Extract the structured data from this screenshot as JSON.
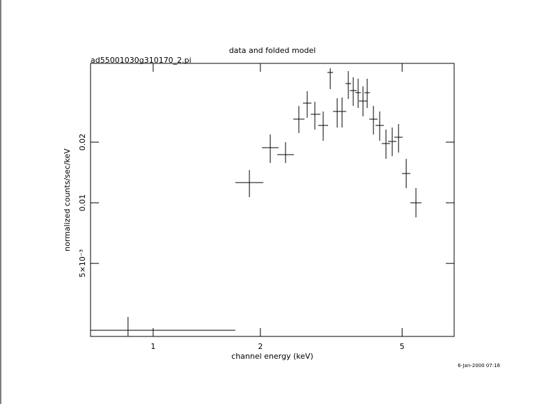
{
  "chart_data": {
    "type": "errorbar",
    "title": "data and folded model",
    "subtitle": "ad55001030g310170_2.pi",
    "xlabel": "channel energy (keV)",
    "ylabel": "normalized counts/sec/keV",
    "timestamp": "6-Jan-2000 07:16",
    "xscale": "log",
    "yscale": "log",
    "xlim": [
      0.667,
      7.0
    ],
    "ylim": [
      0.00217,
      0.0492
    ],
    "xticks": [
      1,
      2,
      5
    ],
    "yticks": [
      0.01,
      0.02,
      {
        "value": 0.005,
        "label": "5×10⁻³"
      }
    ],
    "color": "#000000",
    "x": [
      0.85,
      1.863,
      2.132,
      2.353,
      2.564,
      2.707,
      2.844,
      3.002,
      3.142,
      3.286,
      3.391,
      3.531,
      3.645,
      3.762,
      3.882,
      3.989,
      4.154,
      4.325,
      4.504,
      4.69,
      4.886,
      5.134,
      5.467
    ],
    "x_low": [
      0.667,
      1.701,
      2.02,
      2.23,
      2.474,
      2.634,
      2.769,
      2.909,
      3.085,
      3.199,
      3.301,
      3.468,
      3.564,
      3.695,
      3.779,
      3.917,
      4.044,
      4.21,
      4.385,
      4.566,
      4.754,
      4.997,
      5.275
    ],
    "x_high": [
      1.701,
      2.038,
      2.25,
      2.485,
      2.659,
      2.782,
      2.949,
      3.099,
      3.199,
      3.376,
      3.484,
      3.596,
      3.728,
      3.831,
      3.989,
      4.062,
      4.267,
      4.444,
      4.628,
      4.819,
      5.02,
      5.275,
      5.667
    ],
    "values": [
      0.00233,
      0.0126,
      0.01877,
      0.01733,
      0.02601,
      0.03124,
      0.0275,
      0.02421,
      0.04436,
      0.0284,
      0.0284,
      0.03906,
      0.03606,
      0.03521,
      0.032,
      0.03521,
      0.02601,
      0.02421,
      0.01968,
      0.02016,
      0.02115,
      0.01397,
      0.01
    ],
    "y_low": [
      0.00217,
      0.01066,
      0.01575,
      0.01575,
      0.02218,
      0.02643,
      0.02309,
      0.02032,
      0.03665,
      0.02364,
      0.02364,
      0.03278,
      0.03026,
      0.02955,
      0.02686,
      0.02955,
      0.02183,
      0.02032,
      0.01652,
      0.01705,
      0.01775,
      0.01182,
      0.00846
    ],
    "y_high": [
      0.00271,
      0.01454,
      0.02183,
      0.02,
      0.03026,
      0.03577,
      0.03174,
      0.0284,
      0.04654,
      0.03304,
      0.03331,
      0.04507,
      0.04196,
      0.04129,
      0.03783,
      0.04129,
      0.03026,
      0.0284,
      0.02309,
      0.02364,
      0.02461,
      0.01652,
      0.01182
    ]
  }
}
